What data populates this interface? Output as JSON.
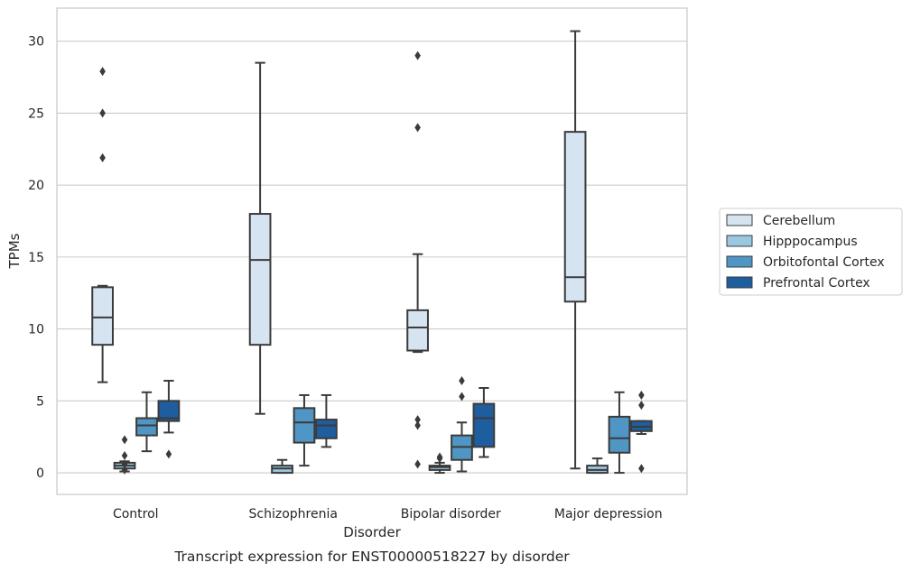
{
  "caption": "Transcript expression for ENST00000518227 by disorder",
  "chart_data": {
    "type": "box",
    "title": "",
    "xlabel": "Disorder",
    "ylabel": "TPMs",
    "ylim": [
      -1.5,
      32.3
    ],
    "yticks": [
      0,
      5,
      10,
      15,
      20,
      25,
      30
    ],
    "grid": "horizontal",
    "legend_position": "right",
    "categories": [
      "Control",
      "Schizophrenia",
      "Bipolar disorder",
      "Major depression"
    ],
    "series": [
      {
        "name": "Cerebellum",
        "color": "#d6e4f2",
        "boxes": [
          {
            "whislo": 6.3,
            "q1": 8.9,
            "med": 10.8,
            "q3": 12.9,
            "whishi": 13.0,
            "fliers": [
              21.9,
              25.0,
              27.9
            ]
          },
          {
            "whislo": 4.1,
            "q1": 8.9,
            "med": 14.8,
            "q3": 18.0,
            "whishi": 28.5,
            "fliers": []
          },
          {
            "whislo": 8.4,
            "q1": 8.5,
            "med": 10.1,
            "q3": 11.3,
            "whishi": 15.2,
            "fliers": [
              0.6,
              3.3,
              3.7,
              24.0,
              29.0
            ]
          },
          {
            "whislo": 0.3,
            "q1": 11.9,
            "med": 13.6,
            "q3": 23.7,
            "whishi": 30.7,
            "fliers": []
          }
        ]
      },
      {
        "name": "Hipppocampus",
        "color": "#9ac8e0",
        "boxes": [
          {
            "whislo": 0.1,
            "q1": 0.3,
            "med": 0.5,
            "q3": 0.7,
            "whishi": 0.8,
            "fliers": [
              0.2,
              0.6,
              1.2,
              2.3
            ]
          },
          {
            "whislo": 0.0,
            "q1": 0.0,
            "med": 0.3,
            "q3": 0.5,
            "whishi": 0.9,
            "fliers": []
          },
          {
            "whislo": 0.0,
            "q1": 0.2,
            "med": 0.4,
            "q3": 0.5,
            "whishi": 0.7,
            "fliers": [
              1.0,
              1.1
            ]
          },
          {
            "whislo": 0.0,
            "q1": 0.0,
            "med": 0.2,
            "q3": 0.5,
            "whishi": 1.0,
            "fliers": []
          }
        ]
      },
      {
        "name": "Orbitofontal Cortex",
        "color": "#5096c5",
        "boxes": [
          {
            "whislo": 1.5,
            "q1": 2.6,
            "med": 3.3,
            "q3": 3.8,
            "whishi": 5.6,
            "fliers": []
          },
          {
            "whislo": 0.5,
            "q1": 2.1,
            "med": 3.5,
            "q3": 4.5,
            "whishi": 5.4,
            "fliers": []
          },
          {
            "whislo": 0.1,
            "q1": 0.9,
            "med": 1.8,
            "q3": 2.6,
            "whishi": 3.5,
            "fliers": [
              5.3,
              6.4
            ]
          },
          {
            "whislo": 0.0,
            "q1": 1.4,
            "med": 2.4,
            "q3": 3.9,
            "whishi": 5.6,
            "fliers": []
          }
        ]
      },
      {
        "name": "Prefrontal Cortex",
        "color": "#1f5e9e",
        "boxes": [
          {
            "whislo": 2.8,
            "q1": 3.6,
            "med": 3.8,
            "q3": 5.0,
            "whishi": 6.4,
            "fliers": [
              1.3
            ]
          },
          {
            "whislo": 1.8,
            "q1": 2.4,
            "med": 3.3,
            "q3": 3.7,
            "whishi": 5.4,
            "fliers": []
          },
          {
            "whislo": 1.1,
            "q1": 1.8,
            "med": 3.8,
            "q3": 4.8,
            "whishi": 5.9,
            "fliers": []
          },
          {
            "whislo": 2.7,
            "q1": 2.9,
            "med": 3.2,
            "q3": 3.6,
            "whishi": 3.6,
            "fliers": [
              0.3,
              4.7,
              5.4
            ]
          }
        ]
      }
    ]
  }
}
